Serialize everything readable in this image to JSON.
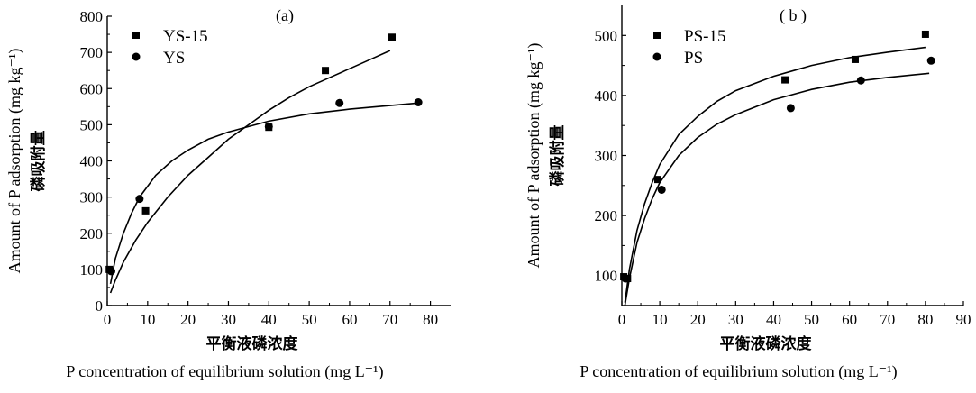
{
  "chart_data": [
    {
      "type": "scatter",
      "panel_label": "(a)",
      "xlabel_cn": "平衡液磷浓度",
      "xlabel_en": "P concentration of equilibrium solution (mg L⁻¹)",
      "ylabel_en": "Amount of P adsorption (mg kg⁻¹)",
      "ylabel_cn": "磷吸附量",
      "xlim": [
        0,
        85
      ],
      "ylim": [
        0,
        800
      ],
      "xticks": [
        0,
        10,
        20,
        30,
        40,
        50,
        60,
        70,
        80
      ],
      "yticks": [
        0,
        100,
        200,
        300,
        400,
        500,
        600,
        700,
        800
      ],
      "legend_position": "top-left",
      "series": [
        {
          "name": "YS-15",
          "marker": "square",
          "points": [
            [
              0.5,
              100
            ],
            [
              9.5,
              262
            ],
            [
              40,
              493
            ],
            [
              54,
              650
            ],
            [
              70.5,
              742
            ]
          ],
          "fit": [
            [
              0.8,
              35
            ],
            [
              2,
              70
            ],
            [
              4,
              120
            ],
            [
              7,
              180
            ],
            [
              10,
              230
            ],
            [
              15,
              300
            ],
            [
              20,
              360
            ],
            [
              25,
              410
            ],
            [
              30,
              460
            ],
            [
              35,
              500
            ],
            [
              40,
              540
            ],
            [
              45,
              575
            ],
            [
              50,
              605
            ],
            [
              55,
              630
            ],
            [
              60,
              655
            ],
            [
              65,
              680
            ],
            [
              70,
              705
            ]
          ]
        },
        {
          "name": "YS",
          "marker": "circle",
          "points": [
            [
              1,
              95
            ],
            [
              8,
              295
            ],
            [
              40,
              495
            ],
            [
              57.5,
              560
            ],
            [
              77,
              562
            ]
          ],
          "fit": [
            [
              0.8,
              60
            ],
            [
              2,
              130
            ],
            [
              4,
              200
            ],
            [
              6,
              255
            ],
            [
              8,
              300
            ],
            [
              12,
              360
            ],
            [
              16,
              400
            ],
            [
              20,
              430
            ],
            [
              25,
              460
            ],
            [
              30,
              480
            ],
            [
              35,
              495
            ],
            [
              40,
              510
            ],
            [
              50,
              530
            ],
            [
              60,
              543
            ],
            [
              70,
              553
            ],
            [
              77,
              560
            ]
          ]
        }
      ]
    },
    {
      "type": "scatter",
      "panel_label": "( b )",
      "xlabel_cn": "平衡液磷浓度",
      "xlabel_en": "P concentration of equilibrium solution (mg L⁻¹)",
      "ylabel_en": "Amount of P adsorption (mg kg⁻¹)",
      "ylabel_cn": "磷吸附量",
      "xlim": [
        0,
        90
      ],
      "ylim": [
        50,
        550
      ],
      "xticks": [
        0,
        10,
        20,
        30,
        40,
        50,
        60,
        70,
        80,
        90
      ],
      "yticks": [
        100,
        200,
        300,
        400,
        500
      ],
      "legend_position": "top-left",
      "series": [
        {
          "name": "PS-15",
          "marker": "square",
          "points": [
            [
              0.5,
              98
            ],
            [
              1.5,
              95
            ],
            [
              9.5,
              260
            ],
            [
              43,
              426
            ],
            [
              61.5,
              460
            ],
            [
              80,
              502
            ]
          ],
          "fit": [
            [
              0.8,
              55
            ],
            [
              2,
              110
            ],
            [
              4,
              175
            ],
            [
              6,
              220
            ],
            [
              8,
              255
            ],
            [
              10,
              285
            ],
            [
              15,
              335
            ],
            [
              20,
              365
            ],
            [
              25,
              390
            ],
            [
              30,
              408
            ],
            [
              40,
              432
            ],
            [
              50,
              450
            ],
            [
              60,
              463
            ],
            [
              70,
              472
            ],
            [
              80,
              480
            ]
          ]
        },
        {
          "name": "PS",
          "marker": "circle",
          "points": [
            [
              1,
              95
            ],
            [
              10.5,
              243
            ],
            [
              44.5,
              379
            ],
            [
              63,
              425
            ],
            [
              81.5,
              458
            ]
          ],
          "fit": [
            [
              0.8,
              50
            ],
            [
              2,
              95
            ],
            [
              4,
              155
            ],
            [
              6,
              195
            ],
            [
              8,
              228
            ],
            [
              10,
              255
            ],
            [
              15,
              300
            ],
            [
              20,
              330
            ],
            [
              25,
              352
            ],
            [
              30,
              368
            ],
            [
              40,
              393
            ],
            [
              50,
              410
            ],
            [
              60,
              422
            ],
            [
              70,
              430
            ],
            [
              81,
              437
            ]
          ]
        }
      ]
    }
  ]
}
